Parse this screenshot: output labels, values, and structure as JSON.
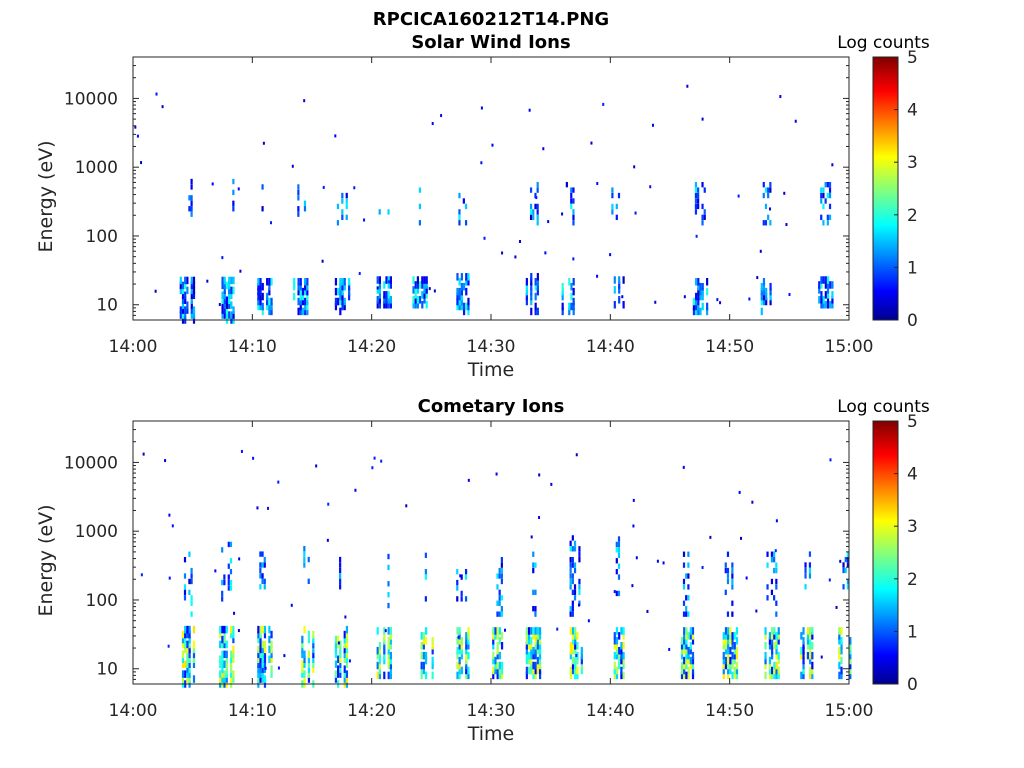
{
  "figure_title": "RPCICA160212T14.PNG",
  "chart_data": [
    {
      "type": "heatmap",
      "title": "Solar Wind Ions",
      "xlabel": "Time",
      "ylabel": "Energy (eV)",
      "x_ticks": [
        "14:00",
        "14:10",
        "14:20",
        "14:30",
        "14:40",
        "14:50",
        "15:00"
      ],
      "y_ticks": [
        "10",
        "100",
        "1000",
        "10000"
      ],
      "y_scale": "log",
      "ylim": [
        6,
        40000
      ],
      "xlim": [
        "14:00",
        "15:00"
      ],
      "colorbar": {
        "label": "Log counts",
        "range": [
          0,
          5
        ],
        "ticks": [
          "0",
          "1",
          "2",
          "3",
          "4",
          "5"
        ],
        "colormap": "jet"
      },
      "approx_bursts": [
        {
          "t_min": 4.5,
          "low_band_eV": [
            6,
            25
          ],
          "high_band_eV": [
            200,
            600
          ]
        },
        {
          "t_min": 8.0,
          "low_band_eV": [
            6,
            25
          ],
          "high_band_eV": [
            200,
            600
          ]
        },
        {
          "t_min": 11.0,
          "low_band_eV": [
            8,
            25
          ],
          "high_band_eV": [
            200,
            600
          ]
        },
        {
          "t_min": 14.0,
          "low_band_eV": [
            8,
            25
          ],
          "high_band_eV": [
            200,
            600
          ]
        },
        {
          "t_min": 17.5,
          "low_band_eV": [
            8,
            25
          ],
          "high_band_eV": [
            150,
            400
          ]
        },
        {
          "t_min": 21.0,
          "low_band_eV": [
            10,
            25
          ],
          "high_band_eV": [
            150,
            300
          ]
        },
        {
          "t_min": 24.0,
          "low_band_eV": [
            10,
            25
          ],
          "high_band_eV": [
            150,
            600
          ]
        },
        {
          "t_min": 27.5,
          "low_band_eV": [
            8,
            30
          ],
          "high_band_eV": [
            150,
            400
          ]
        },
        {
          "t_min": 33.5,
          "low_band_eV": [
            8,
            30
          ],
          "high_band_eV": [
            150,
            600
          ]
        },
        {
          "t_min": 36.5,
          "low_band_eV": [
            8,
            25
          ],
          "high_band_eV": [
            150,
            600
          ]
        },
        {
          "t_min": 40.5,
          "low_band_eV": [
            10,
            25
          ],
          "high_band_eV": [
            150,
            600
          ]
        },
        {
          "t_min": 47.5,
          "low_band_eV": [
            8,
            25
          ],
          "high_band_eV": [
            150,
            600
          ]
        },
        {
          "t_min": 53.0,
          "low_band_eV": [
            8,
            25
          ],
          "high_band_eV": [
            150,
            600
          ]
        },
        {
          "t_min": 58.0,
          "low_band_eV": [
            10,
            25
          ],
          "high_band_eV": [
            150,
            600
          ]
        }
      ]
    },
    {
      "type": "heatmap",
      "title": "Cometary Ions",
      "xlabel": "Time",
      "ylabel": "Energy (eV)",
      "x_ticks": [
        "14:00",
        "14:10",
        "14:20",
        "14:30",
        "14:40",
        "14:50",
        "15:00"
      ],
      "y_ticks": [
        "10",
        "100",
        "1000",
        "10000"
      ],
      "y_scale": "log",
      "ylim": [
        6,
        40000
      ],
      "xlim": [
        "14:00",
        "15:00"
      ],
      "colorbar": {
        "label": "Log counts",
        "range": [
          0,
          5
        ],
        "ticks": [
          "0",
          "1",
          "2",
          "3",
          "4",
          "5"
        ],
        "colormap": "jet"
      },
      "approx_bursts": [
        {
          "t_min": 4.5,
          "low_band_eV": [
            6,
            40
          ],
          "high_band_eV": [
            60,
            500
          ]
        },
        {
          "t_min": 7.8,
          "low_band_eV": [
            6,
            40
          ],
          "high_band_eV": [
            100,
            800
          ]
        },
        {
          "t_min": 11.0,
          "low_band_eV": [
            6,
            40
          ],
          "high_band_eV": [
            150,
            500
          ]
        },
        {
          "t_min": 14.5,
          "low_band_eV": [
            6,
            40
          ],
          "high_band_eV": [
            150,
            600
          ]
        },
        {
          "t_min": 17.5,
          "low_band_eV": [
            6,
            40
          ],
          "high_band_eV": [
            150,
            500
          ]
        },
        {
          "t_min": 21.0,
          "low_band_eV": [
            8,
            40
          ],
          "high_band_eV": [
            80,
            500
          ]
        },
        {
          "t_min": 24.5,
          "low_band_eV": [
            8,
            40
          ],
          "high_band_eV": [
            100,
            500
          ]
        },
        {
          "t_min": 27.5,
          "low_band_eV": [
            8,
            40
          ],
          "high_band_eV": [
            100,
            400
          ]
        },
        {
          "t_min": 30.5,
          "low_band_eV": [
            8,
            40
          ],
          "high_band_eV": [
            60,
            400
          ]
        },
        {
          "t_min": 33.5,
          "low_band_eV": [
            8,
            40
          ],
          "high_band_eV": [
            60,
            500
          ]
        },
        {
          "t_min": 37.0,
          "low_band_eV": [
            8,
            40
          ],
          "high_band_eV": [
            60,
            800
          ]
        },
        {
          "t_min": 40.5,
          "low_band_eV": [
            8,
            40
          ],
          "high_band_eV": [
            100,
            800
          ]
        },
        {
          "t_min": 46.5,
          "low_band_eV": [
            8,
            40
          ],
          "high_band_eV": [
            60,
            500
          ]
        },
        {
          "t_min": 50.0,
          "low_band_eV": [
            8,
            40
          ],
          "high_band_eV": [
            60,
            500
          ]
        },
        {
          "t_min": 53.5,
          "low_band_eV": [
            8,
            40
          ],
          "high_band_eV": [
            60,
            500
          ]
        },
        {
          "t_min": 56.5,
          "low_band_eV": [
            8,
            40
          ],
          "high_band_eV": [
            150,
            500
          ]
        },
        {
          "t_min": 59.5,
          "low_band_eV": [
            8,
            40
          ],
          "high_band_eV": [
            150,
            500
          ]
        }
      ]
    }
  ]
}
